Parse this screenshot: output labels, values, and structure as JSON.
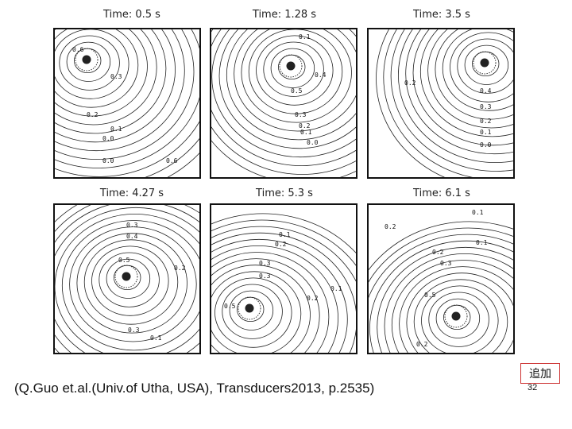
{
  "panels": [
    {
      "title": "Time: 0.5 s",
      "labels": [
        "0.6",
        "0.3",
        "0.2",
        "0.1",
        "0.0",
        "0.0",
        "0.6"
      ]
    },
    {
      "title": "Time: 1.28 s",
      "labels": [
        "0.1",
        "0.4",
        "0.5",
        "0.3",
        "0.2",
        "0.1",
        "0.0"
      ]
    },
    {
      "title": "Time: 3.5 s",
      "labels": [
        "0.4",
        "0.3",
        "0.2",
        "0.1",
        "0.0",
        "0.2"
      ]
    },
    {
      "title": "Time: 4.27 s",
      "labels": [
        "0.3",
        "0.4",
        "0.5",
        "0.2",
        "0.1",
        "0.3"
      ]
    },
    {
      "title": "Time: 5.3 s",
      "labels": [
        "0.1",
        "0.2",
        "0.3",
        "0.5",
        "0.3",
        "0.2",
        "0.1"
      ]
    },
    {
      "title": "Time: 6.1 s",
      "labels": [
        "0.1",
        "0.2",
        "0.1",
        "0.2",
        "0.3",
        "0.5",
        "0.2"
      ]
    }
  ],
  "tag": "追加",
  "citation": "(Q.Guo et.al.(Univ.of Utha, USA), Transducers2013, p.2535)",
  "page_number": "32"
}
